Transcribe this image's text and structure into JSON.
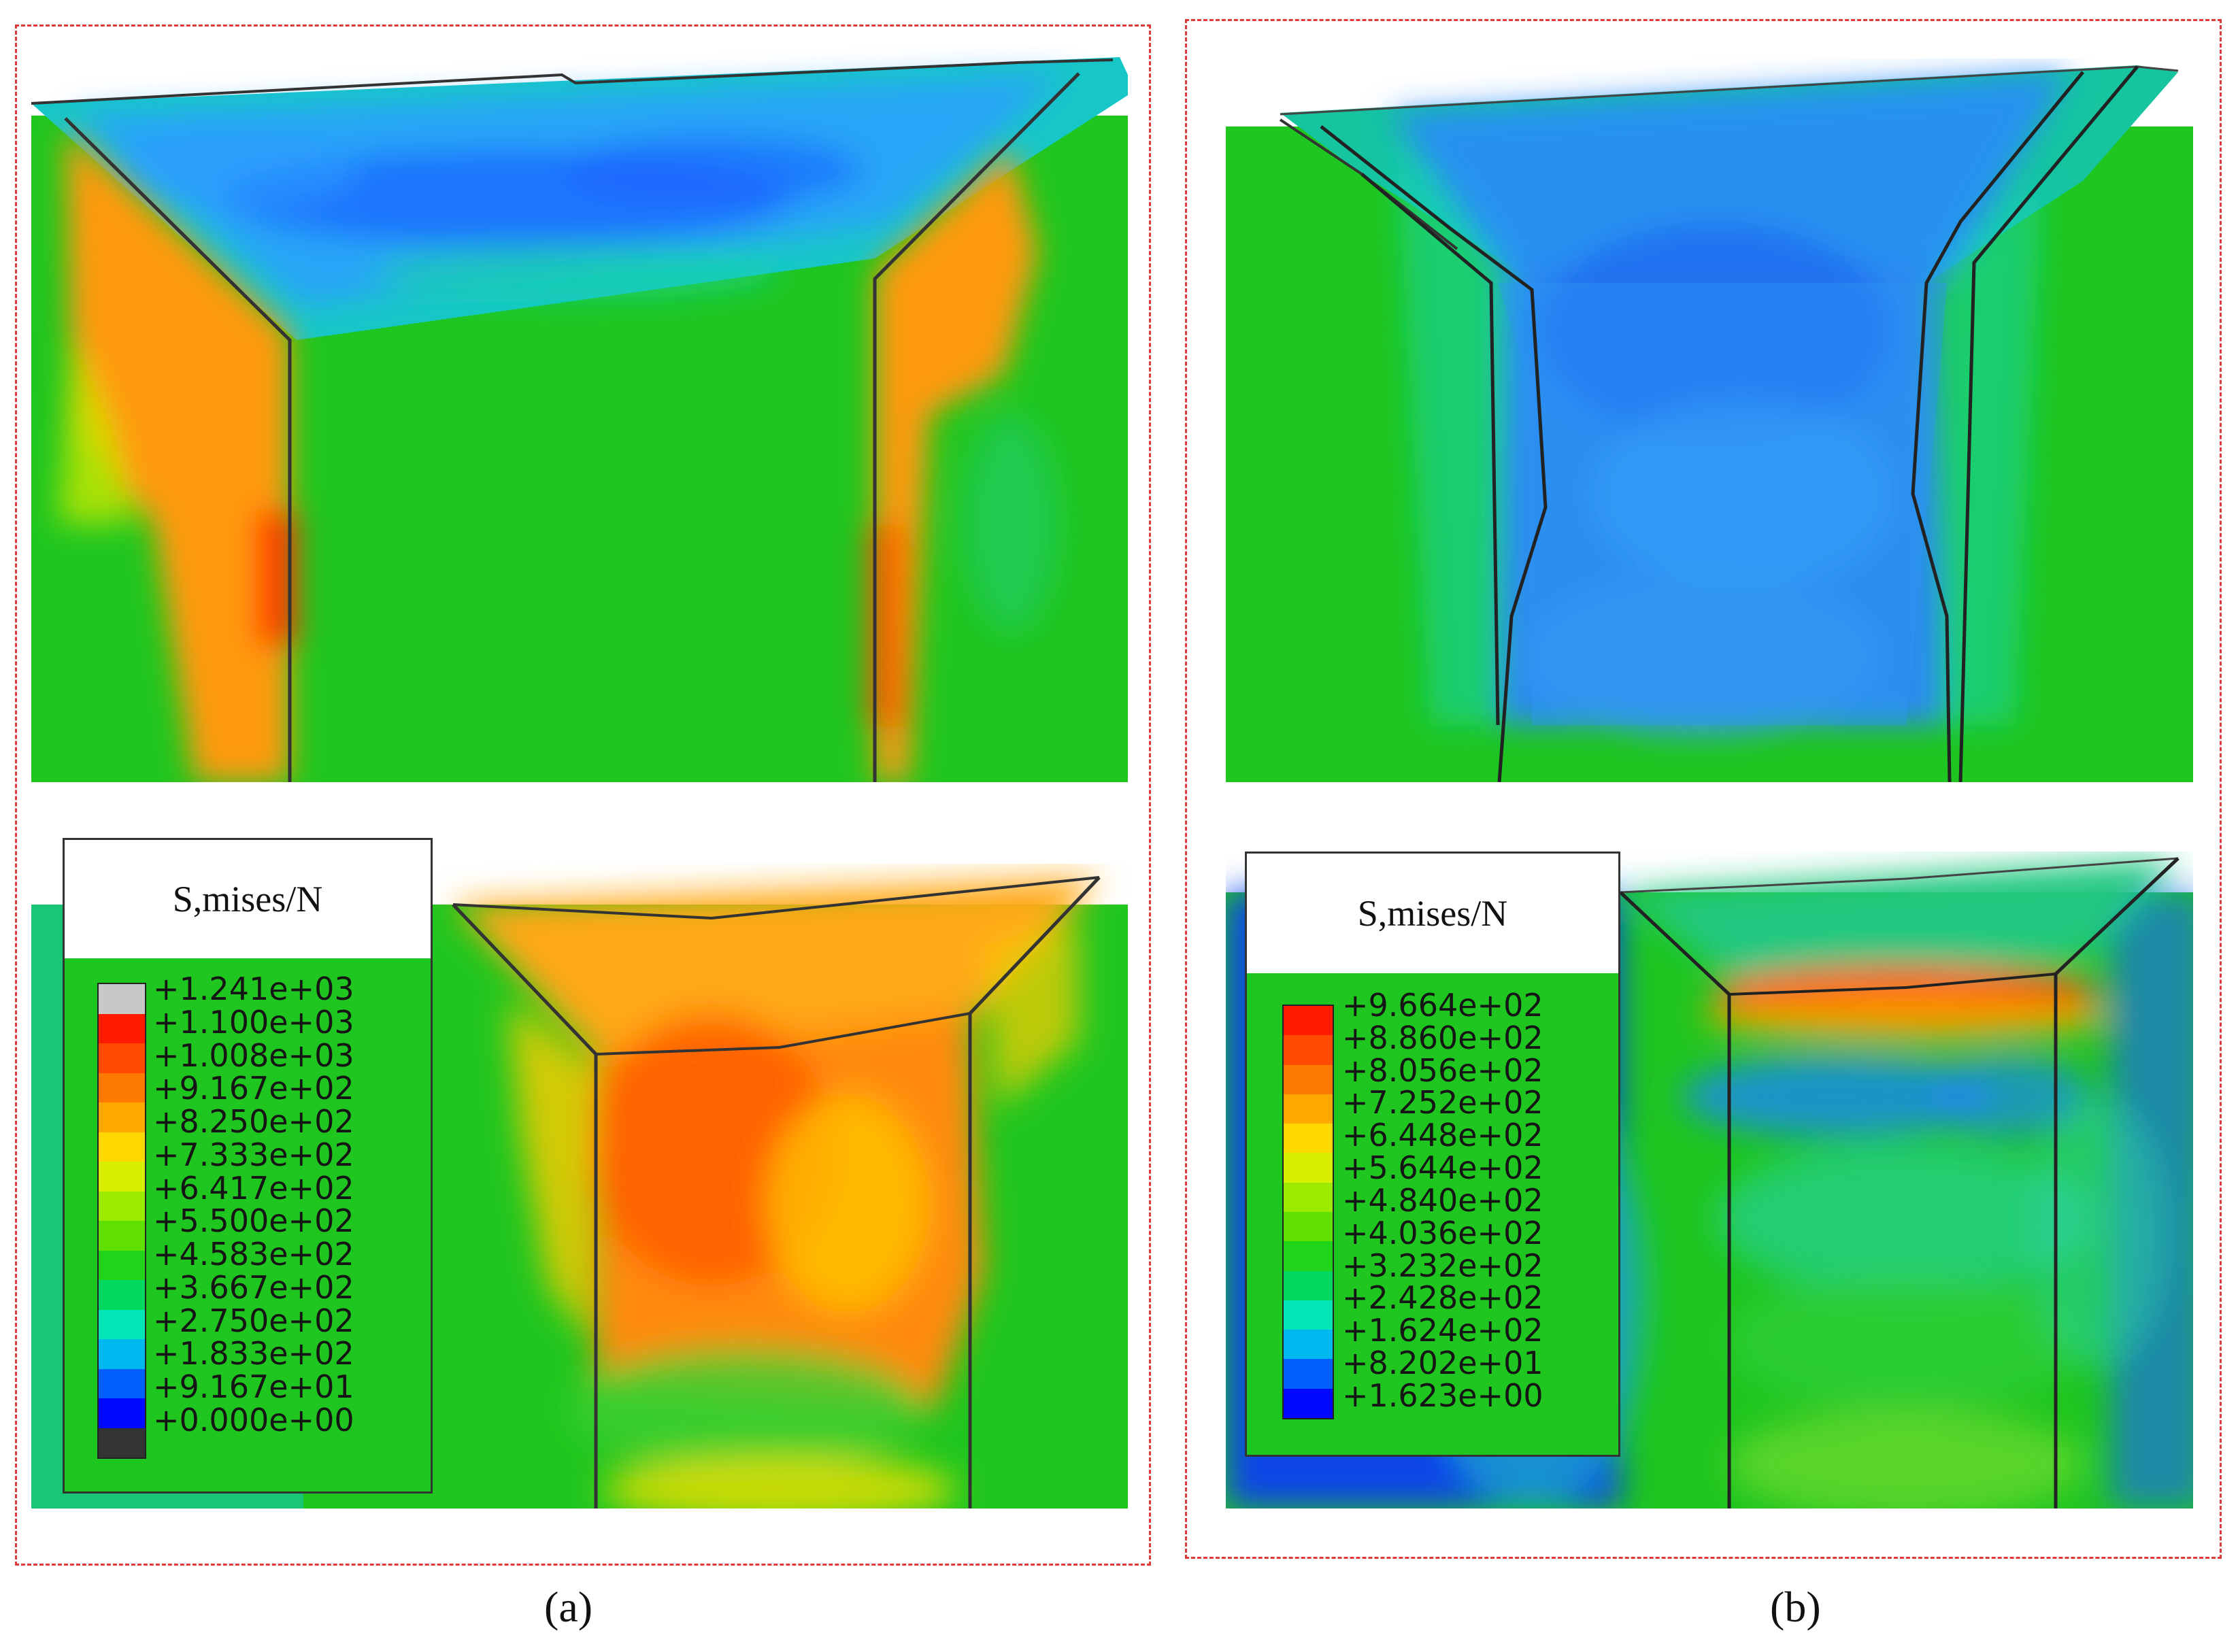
{
  "panels": [
    {
      "caption": "(a)",
      "legend": {
        "title": "S,mises/N",
        "labels": [
          "+1.241e+03",
          "+1.100e+03",
          "+1.008e+03",
          "+9.167e+02",
          "+8.250e+02",
          "+7.333e+02",
          "+6.417e+02",
          "+5.500e+02",
          "+4.583e+02",
          "+3.667e+02",
          "+2.750e+02",
          "+1.833e+02",
          "+9.167e+01",
          "+0.000e+00"
        ],
        "colors": [
          "#c8c8c8",
          "#ff1a00",
          "#ff4a00",
          "#ff7a00",
          "#ffa800",
          "#ffd800",
          "#d8f000",
          "#9cea00",
          "#5fe000",
          "#20d41a",
          "#00d860",
          "#00e6b4",
          "#00b8f0",
          "#0060ff",
          "#0008ff",
          "#333333"
        ]
      }
    },
    {
      "caption": "(b)",
      "legend": {
        "title": "S,mises/N",
        "labels": [
          "+9.664e+02",
          "+8.860e+02",
          "+8.056e+02",
          "+7.252e+02",
          "+6.448e+02",
          "+5.644e+02",
          "+4.840e+02",
          "+4.036e+02",
          "+3.232e+02",
          "+2.428e+02",
          "+1.624e+02",
          "+8.202e+01",
          "+1.623e+00"
        ],
        "colors": [
          "#ff1a00",
          "#ff4a00",
          "#ff7a00",
          "#ffa800",
          "#ffd800",
          "#d8f000",
          "#9cea00",
          "#5fe000",
          "#20d41a",
          "#00d860",
          "#00e6b4",
          "#00b8f0",
          "#0060ff",
          "#0008ff"
        ]
      }
    }
  ]
}
